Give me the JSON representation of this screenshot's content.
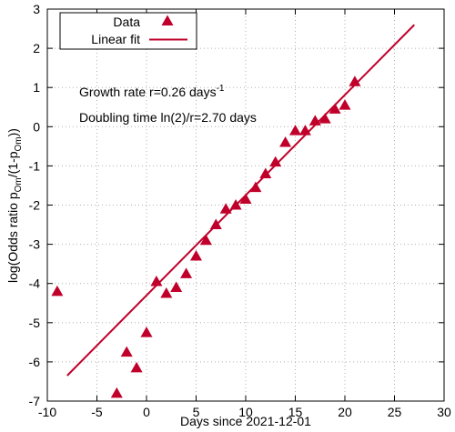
{
  "chart_data": {
    "type": "scatter",
    "title": "",
    "xlabel": "Days since 2021-12-01",
    "ylabel": {
      "prefix": "log(Odds ratio p",
      "sub1": "Om",
      "mid": "/(1-p",
      "sub2": "Om",
      "suffix": "))"
    },
    "xlim": [
      -10,
      30
    ],
    "ylim": [
      -7,
      3
    ],
    "xticks": [
      -10,
      -5,
      0,
      5,
      10,
      15,
      20,
      25,
      30
    ],
    "yticks": [
      -7,
      -6,
      -5,
      -4,
      -3,
      -2,
      -1,
      0,
      1,
      2,
      3
    ],
    "grid": true,
    "legend_position": "top-left",
    "series": [
      {
        "name": "Data",
        "kind": "points",
        "marker": "triangle",
        "color": "#c0002a",
        "points": [
          {
            "x": -9,
            "y": -4.2
          },
          {
            "x": -3,
            "y": -6.8
          },
          {
            "x": -2,
            "y": -5.75
          },
          {
            "x": -1,
            "y": -6.15
          },
          {
            "x": 0,
            "y": -5.25
          },
          {
            "x": 1,
            "y": -3.95
          },
          {
            "x": 2,
            "y": -4.25
          },
          {
            "x": 3,
            "y": -4.1
          },
          {
            "x": 4,
            "y": -3.75
          },
          {
            "x": 5,
            "y": -3.3
          },
          {
            "x": 6,
            "y": -2.9
          },
          {
            "x": 7,
            "y": -2.5
          },
          {
            "x": 8,
            "y": -2.1
          },
          {
            "x": 9,
            "y": -2.0
          },
          {
            "x": 10,
            "y": -1.85
          },
          {
            "x": 11,
            "y": -1.55
          },
          {
            "x": 12,
            "y": -1.2
          },
          {
            "x": 13,
            "y": -0.9
          },
          {
            "x": 14,
            "y": -0.4
          },
          {
            "x": 15,
            "y": -0.1
          },
          {
            "x": 16,
            "y": -0.1
          },
          {
            "x": 17,
            "y": 0.15
          },
          {
            "x": 18,
            "y": 0.2
          },
          {
            "x": 19,
            "y": 0.45
          },
          {
            "x": 20,
            "y": 0.55
          },
          {
            "x": 21,
            "y": 1.15
          }
        ]
      },
      {
        "name": "Linear fit",
        "kind": "line",
        "color": "#c0002a",
        "points": [
          {
            "x": -8,
            "y": -6.35
          },
          {
            "x": 27,
            "y": 2.6
          }
        ]
      }
    ],
    "annotations": {
      "growth_prefix": "Growth rate r=0.26 days",
      "growth_sup": "-1",
      "doubling": "Doubling time ln(2)/r=2.70 days"
    }
  }
}
